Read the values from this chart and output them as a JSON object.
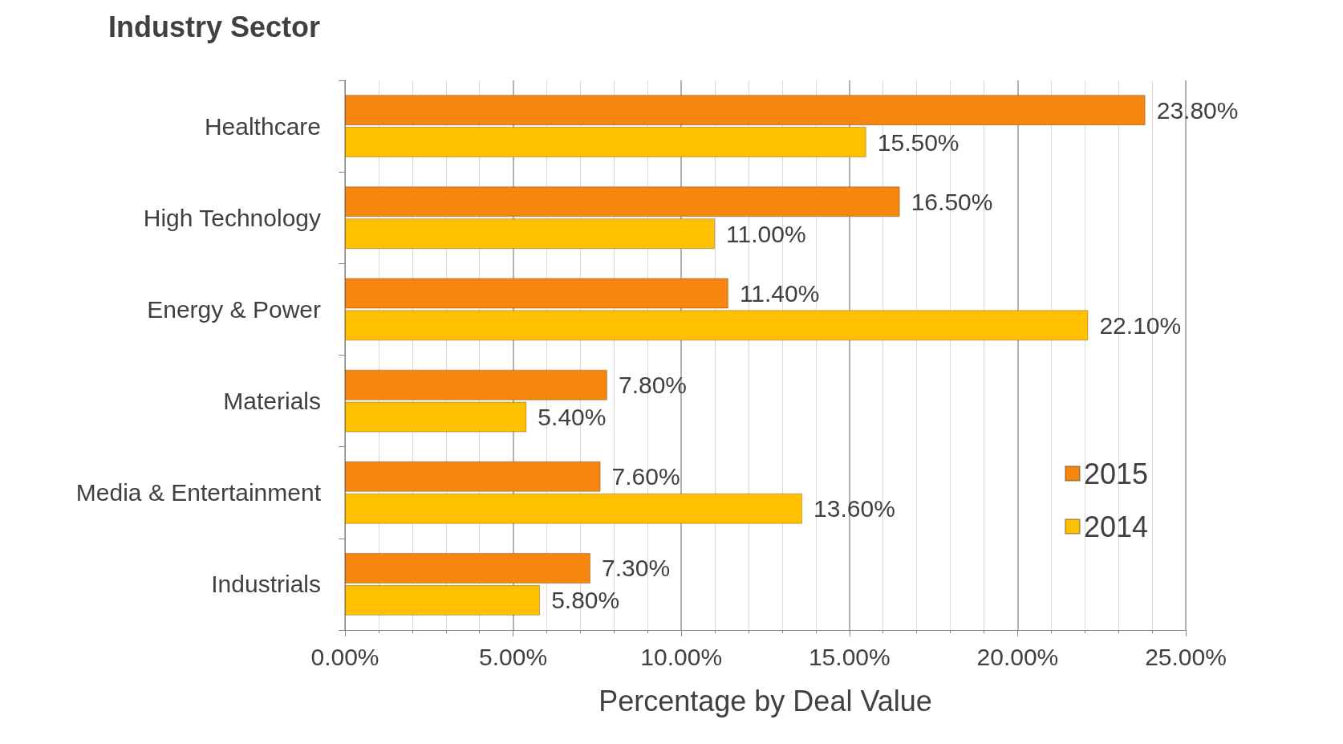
{
  "chart_data": {
    "type": "bar",
    "orientation": "horizontal",
    "title": "Industry Sector",
    "xlabel": "Percentage by Deal Value",
    "categories": [
      "Healthcare",
      "High Technology",
      "Energy & Power",
      "Materials",
      "Media & Entertainment",
      "Industrials"
    ],
    "series": [
      {
        "name": "2015",
        "color": "#f7860f",
        "values": [
          23.8,
          16.5,
          11.4,
          7.8,
          7.6,
          7.3
        ],
        "value_labels": [
          "23.80%",
          "16.50%",
          "11.40%",
          "7.80%",
          "7.60%",
          "7.30%"
        ]
      },
      {
        "name": "2014",
        "color": "#ffc000",
        "values": [
          15.5,
          11.0,
          22.1,
          5.4,
          13.6,
          5.8
        ],
        "value_labels": [
          "15.50%",
          "11.00%",
          "22.10%",
          "5.40%",
          "13.60%",
          "5.80%"
        ]
      }
    ],
    "xlim": [
      0,
      25
    ],
    "xticks": [
      {
        "value": 0,
        "label": "0.00%"
      },
      {
        "value": 5,
        "label": "5.00%"
      },
      {
        "value": 10,
        "label": "10.00%"
      },
      {
        "value": 15,
        "label": "15.00%"
      },
      {
        "value": 20,
        "label": "20.00%"
      },
      {
        "value": 25,
        "label": "25.00%"
      }
    ],
    "grid": "x",
    "legend": "bottom right"
  }
}
